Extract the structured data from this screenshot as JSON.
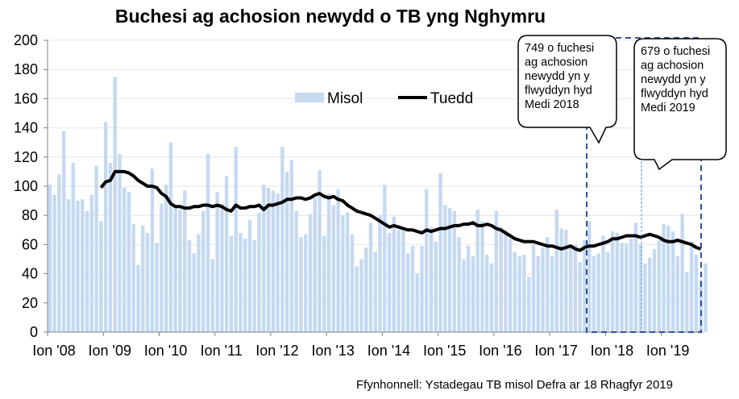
{
  "chart_data": {
    "type": "bar+line",
    "title": "Buchesi ag achosion newydd o TB yng Nghymru",
    "source": "Ffynhonnell: Ystadegau TB misol Defra ar 18 Rhagfyr 2019",
    "ylim": [
      0,
      200
    ],
    "yticks": [
      "0",
      "20",
      "40",
      "60",
      "80",
      "100",
      "120",
      "140",
      "160",
      "180",
      "200"
    ],
    "xticks": [
      "Ion '08",
      "Ion '09",
      "Ion '10",
      "Ion '11",
      "Ion '12",
      "Ion '13",
      "Ion '14",
      "Ion '15",
      "Ion '16",
      "Ion '17",
      "Ion '18",
      "Ion '19"
    ],
    "x_start": "2008-01",
    "grid": true,
    "legend_position": "top-center",
    "series": [
      {
        "name": "Misol",
        "type": "bar",
        "color": "#c5d9f1",
        "start": "2008-01",
        "values": [
          101,
          94,
          108,
          138,
          91,
          116,
          90,
          91,
          83,
          94,
          114,
          76,
          144,
          116,
          175,
          122,
          99,
          96,
          74,
          46,
          73,
          68,
          112,
          61,
          88,
          101,
          130,
          87,
          84,
          97,
          63,
          54,
          67,
          83,
          122,
          50,
          96,
          88,
          107,
          66,
          127,
          68,
          64,
          77,
          63,
          82,
          101,
          99,
          97,
          95,
          127,
          110,
          118,
          83,
          65,
          67,
          81,
          92,
          111,
          66,
          95,
          87,
          98,
          80,
          82,
          67,
          45,
          50,
          58,
          75,
          55,
          80,
          101,
          68,
          79,
          70,
          70,
          54,
          59,
          40,
          59,
          98,
          72,
          62,
          109,
          87,
          85,
          83,
          65,
          50,
          59,
          52,
          84,
          76,
          53,
          47,
          83,
          72,
          70,
          64,
          55,
          52,
          53,
          38,
          60,
          52,
          58,
          65,
          52,
          84,
          71,
          70,
          58,
          60,
          48,
          63,
          76,
          52,
          54,
          66,
          55,
          69,
          68,
          61,
          61,
          64,
          75,
          60,
          47,
          51,
          57,
          63,
          74,
          73,
          69,
          52,
          81,
          41,
          62,
          53,
          36,
          47
        ]
      },
      {
        "name": "Tuedd",
        "type": "line",
        "color": "#000000",
        "start": "2008-12",
        "values": [
          99,
          103,
          104,
          110,
          110,
          110,
          109,
          107,
          104,
          102,
          100,
          100,
          99,
          95,
          93,
          88,
          86,
          86,
          85,
          85,
          86,
          86,
          87,
          87,
          86,
          87,
          86,
          84,
          83,
          87,
          85,
          85,
          86,
          86,
          87,
          84,
          87,
          87,
          88,
          89,
          91,
          91,
          92,
          92,
          91,
          92,
          94,
          95,
          93,
          92,
          93,
          91,
          90,
          87,
          85,
          83,
          82,
          81,
          80,
          78,
          76,
          74,
          72,
          73,
          72,
          71,
          70,
          70,
          69,
          68,
          70,
          69,
          70,
          71,
          71,
          72,
          73,
          73,
          74,
          74,
          75,
          73,
          73,
          74,
          73,
          71,
          70,
          68,
          66,
          64,
          63,
          62,
          62,
          62,
          61,
          60,
          59,
          59,
          58,
          57,
          58,
          59,
          57,
          56,
          58,
          59,
          59,
          60,
          61,
          62,
          64,
          64,
          65,
          66,
          66,
          66,
          65,
          66,
          67,
          66,
          65,
          63,
          62,
          62,
          63,
          62,
          61,
          60,
          58,
          57
        ]
      }
    ],
    "annotations": [
      {
        "text": [
          "749 o fuchesi",
          "ag achosion",
          "newydd yn y",
          "flwyddyn hyd",
          "Medi 2018"
        ]
      },
      {
        "text": [
          "679 o fuchesi",
          "ag achosion",
          "newydd yn y",
          "flwyddyn hyd",
          "Medi 2019"
        ]
      }
    ],
    "colors": {
      "bar": "#c5d9f1",
      "line": "#000000",
      "box": "#2f5597",
      "marker": "#6fa0d8"
    }
  }
}
